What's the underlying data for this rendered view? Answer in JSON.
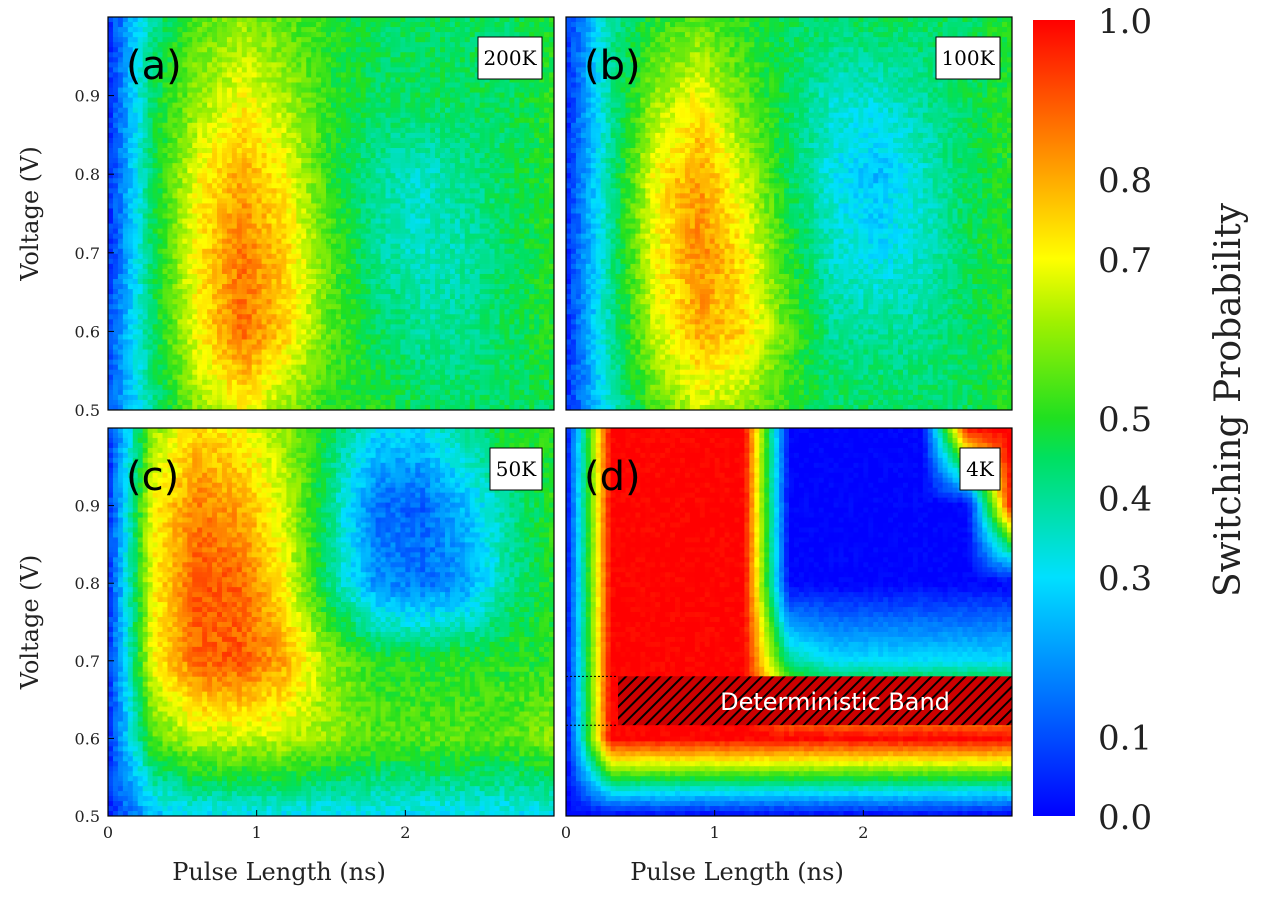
{
  "chart_data": [
    {
      "id": "a",
      "type": "heatmap",
      "panel_label": "(a)",
      "temperature": "200K",
      "xlabel": "",
      "ylabel": "Voltage (V)",
      "xlim": [
        0,
        3
      ],
      "ylim": [
        0.5,
        1.0
      ],
      "xticks": [],
      "yticks": [
        "0.5",
        "0.6",
        "0.7",
        "0.8",
        "0.9"
      ],
      "x_axis": [
        0.0,
        0.3,
        0.6,
        0.9,
        1.2,
        1.5,
        1.8,
        2.1,
        2.4,
        2.7,
        3.0
      ],
      "y_axis": [
        0.5,
        0.6,
        0.7,
        0.8,
        0.9,
        1.0
      ],
      "values": [
        [
          0.1,
          0.4,
          0.6,
          0.7,
          0.6,
          0.5,
          0.5,
          0.45,
          0.45,
          0.45,
          0.45
        ],
        [
          0.1,
          0.45,
          0.7,
          0.88,
          0.75,
          0.55,
          0.45,
          0.4,
          0.4,
          0.45,
          0.5
        ],
        [
          0.05,
          0.45,
          0.72,
          0.86,
          0.75,
          0.55,
          0.4,
          0.35,
          0.38,
          0.45,
          0.5
        ],
        [
          0.05,
          0.45,
          0.7,
          0.8,
          0.7,
          0.5,
          0.4,
          0.35,
          0.4,
          0.45,
          0.5
        ],
        [
          0.05,
          0.45,
          0.6,
          0.7,
          0.62,
          0.5,
          0.45,
          0.45,
          0.45,
          0.45,
          0.5
        ],
        [
          0.05,
          0.4,
          0.55,
          0.6,
          0.55,
          0.5,
          0.45,
          0.45,
          0.45,
          0.45,
          0.5
        ]
      ]
    },
    {
      "id": "b",
      "type": "heatmap",
      "panel_label": "(b)",
      "temperature": "100K",
      "xlabel": "",
      "ylabel": "",
      "xlim": [
        0,
        3
      ],
      "ylim": [
        0.5,
        1.0
      ],
      "xticks": [],
      "yticks": [],
      "x_axis": [
        0.0,
        0.3,
        0.6,
        0.9,
        1.2,
        1.5,
        1.8,
        2.1,
        2.4,
        2.7,
        3.0
      ],
      "y_axis": [
        0.5,
        0.6,
        0.7,
        0.8,
        0.9,
        1.0
      ],
      "values": [
        [
          0.05,
          0.35,
          0.55,
          0.65,
          0.6,
          0.5,
          0.45,
          0.45,
          0.45,
          0.45,
          0.5
        ],
        [
          0.05,
          0.4,
          0.65,
          0.8,
          0.75,
          0.55,
          0.4,
          0.4,
          0.4,
          0.45,
          0.5
        ],
        [
          0.05,
          0.4,
          0.7,
          0.84,
          0.72,
          0.5,
          0.35,
          0.3,
          0.35,
          0.45,
          0.5
        ],
        [
          0.05,
          0.4,
          0.7,
          0.82,
          0.65,
          0.45,
          0.32,
          0.25,
          0.35,
          0.45,
          0.5
        ],
        [
          0.05,
          0.4,
          0.6,
          0.7,
          0.55,
          0.45,
          0.35,
          0.35,
          0.4,
          0.45,
          0.5
        ],
        [
          0.05,
          0.4,
          0.5,
          0.55,
          0.5,
          0.45,
          0.45,
          0.45,
          0.45,
          0.45,
          0.5
        ]
      ]
    },
    {
      "id": "c",
      "type": "heatmap",
      "panel_label": "(c)",
      "temperature": "50K",
      "xlabel": "Pulse Length (ns)",
      "ylabel": "Voltage (V)",
      "xlim": [
        0,
        3
      ],
      "ylim": [
        0.5,
        1.0
      ],
      "xticks": [
        "0",
        "1",
        "2"
      ],
      "yticks": [
        "0.5",
        "0.6",
        "0.7",
        "0.8",
        "0.9"
      ],
      "x_axis": [
        0.0,
        0.3,
        0.6,
        0.9,
        1.2,
        1.5,
        1.8,
        2.1,
        2.4,
        2.7,
        3.0
      ],
      "y_axis": [
        0.5,
        0.6,
        0.7,
        0.8,
        0.9,
        1.0
      ],
      "values": [
        [
          0.05,
          0.25,
          0.3,
          0.3,
          0.3,
          0.3,
          0.3,
          0.3,
          0.3,
          0.3,
          0.3
        ],
        [
          0.05,
          0.55,
          0.65,
          0.65,
          0.65,
          0.6,
          0.55,
          0.55,
          0.55,
          0.55,
          0.6
        ],
        [
          0.05,
          0.7,
          0.88,
          0.9,
          0.8,
          0.6,
          0.5,
          0.5,
          0.5,
          0.5,
          0.5
        ],
        [
          0.05,
          0.7,
          0.9,
          0.88,
          0.7,
          0.4,
          0.2,
          0.15,
          0.2,
          0.4,
          0.5
        ],
        [
          0.05,
          0.7,
          0.85,
          0.8,
          0.65,
          0.4,
          0.15,
          0.12,
          0.25,
          0.4,
          0.5
        ],
        [
          0.05,
          0.6,
          0.75,
          0.7,
          0.6,
          0.45,
          0.3,
          0.3,
          0.4,
          0.5,
          0.5
        ]
      ]
    },
    {
      "id": "d",
      "type": "heatmap",
      "panel_label": "(d)",
      "temperature": "4K",
      "xlabel": "Pulse Length (ns)",
      "ylabel": "",
      "xlim": [
        0,
        3
      ],
      "ylim": [
        0.5,
        1.0
      ],
      "xticks": [
        "0",
        "1",
        "2"
      ],
      "yticks": [],
      "x_axis": [
        0.0,
        0.3,
        0.6,
        0.9,
        1.2,
        1.5,
        1.8,
        2.1,
        2.4,
        2.7,
        3.0
      ],
      "y_axis": [
        0.5,
        0.6,
        0.7,
        0.8,
        0.9,
        1.0
      ],
      "values": [
        [
          0.0,
          0.0,
          0.0,
          0.0,
          0.0,
          0.0,
          0.0,
          0.0,
          0.0,
          0.0,
          0.0
        ],
        [
          0.0,
          1.0,
          1.0,
          1.0,
          1.0,
          1.0,
          1.0,
          1.0,
          1.0,
          1.0,
          1.0
        ],
        [
          0.0,
          1.0,
          1.0,
          1.0,
          1.0,
          0.4,
          0.3,
          0.3,
          0.3,
          0.3,
          0.3
        ],
        [
          0.0,
          1.0,
          1.0,
          1.0,
          1.0,
          0.0,
          0.0,
          0.0,
          0.0,
          0.0,
          0.0
        ],
        [
          0.0,
          1.0,
          1.0,
          1.0,
          1.0,
          0.0,
          0.0,
          0.0,
          0.0,
          0.0,
          1.0
        ],
        [
          0.0,
          1.0,
          1.0,
          1.0,
          1.0,
          0.0,
          0.0,
          0.0,
          0.0,
          1.0,
          1.0
        ]
      ],
      "annotation": {
        "text": "Deterministic Band",
        "x_range": [
          0.35,
          3.0
        ],
        "y_range": [
          0.617,
          0.68
        ]
      }
    }
  ],
  "colorbar": {
    "label": "Switching Probability",
    "range": [
      0.0,
      1.0
    ],
    "ticks": [
      "0.0",
      "0.1",
      "0.3",
      "0.4",
      "0.5",
      "0.7",
      "0.8",
      "1.0"
    ],
    "tick_values": [
      0.0,
      0.1,
      0.3,
      0.4,
      0.5,
      0.7,
      0.8,
      1.0
    ],
    "colormap": "jet"
  }
}
